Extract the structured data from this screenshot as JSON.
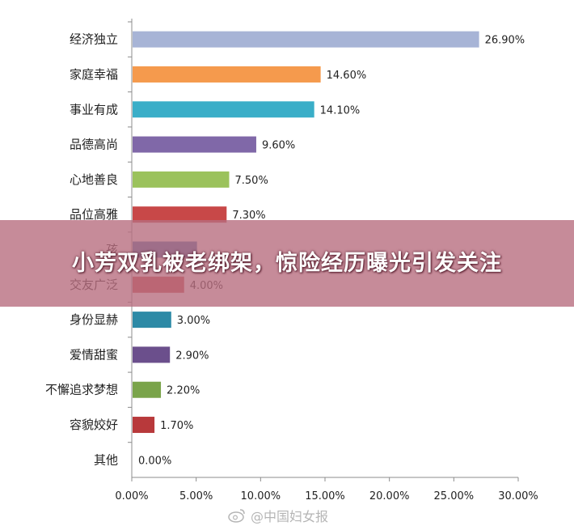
{
  "banner": {
    "headline": "小芳双乳被老绑架，惊险经历曝光引发关注"
  },
  "watermark": {
    "text": "@中国妇女报"
  },
  "chart_data": {
    "type": "bar",
    "orientation": "horizontal",
    "categories": [
      "经济独立",
      "家庭幸福",
      "事业有成",
      "品德高尚",
      "心地善良",
      "品位高雅",
      "孩",
      "交友广泛",
      "身份显赫",
      "爱情甜蜜",
      "不懈追求梦想",
      "容貌姣好",
      "其他"
    ],
    "values": [
      26.9,
      14.6,
      14.1,
      9.6,
      7.5,
      7.3,
      5.0,
      4.0,
      3.0,
      2.9,
      2.2,
      1.7,
      0.0
    ],
    "value_labels": [
      "26.90%",
      "14.60%",
      "14.10%",
      "9.60%",
      "7.50%",
      "7.30%",
      "",
      "4.00%",
      "3.00%",
      "2.90%",
      "2.20%",
      "1.70%",
      "0.00%"
    ],
    "colors": [
      "#a7b4d6",
      "#f59a4d",
      "#3aaec8",
      "#8068a8",
      "#9bc25c",
      "#c84848",
      "#3f6fb0",
      "#c84848",
      "#2d8aa6",
      "#6b4f8c",
      "#7aa44a",
      "#b8393b",
      "#5a7fc0"
    ],
    "xlim": [
      0,
      30
    ],
    "x_ticks": [
      "0.00%",
      "5.00%",
      "10.00%",
      "15.00%",
      "20.00%",
      "25.00%",
      "30.00%"
    ],
    "x_tick_values": [
      0,
      5,
      10,
      15,
      20,
      25,
      30
    ],
    "grid": false
  }
}
